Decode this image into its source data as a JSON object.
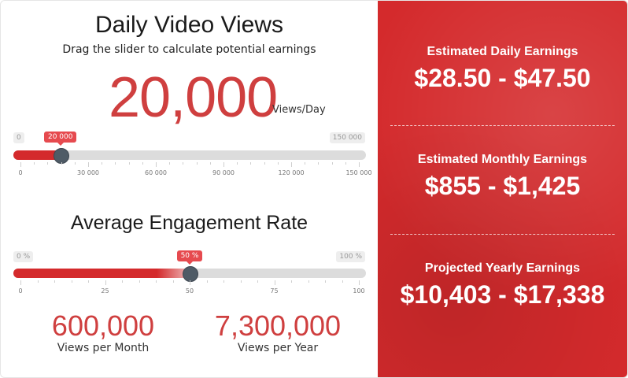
{
  "views": {
    "title": "Daily Video Views",
    "subtitle": "Drag the slider to calculate potential earnings",
    "value": "20,000",
    "unit": "Views/Day",
    "slider": {
      "min_label": "0",
      "max_label": "150 000",
      "current_label": "20 000",
      "min": 0,
      "max": 150000,
      "value": 20000,
      "ticks": [
        "0",
        "30 000",
        "60 000",
        "90 000",
        "120 000",
        "150 000"
      ]
    }
  },
  "engagement": {
    "title": "Average Engagement Rate",
    "slider": {
      "min_label": "0 %",
      "max_label": "100 %",
      "current_label": "50 %",
      "min": 0,
      "max": 100,
      "value": 50,
      "ticks": [
        "0",
        "25",
        "50",
        "75",
        "100"
      ]
    }
  },
  "stats": {
    "monthly_views": "600,000",
    "monthly_label": "Views per Month",
    "yearly_views": "7,300,000",
    "yearly_label": "Views per Year"
  },
  "earnings": {
    "daily_label": "Estimated Daily Earnings",
    "daily_value": "$28.50 - $47.50",
    "monthly_label": "Estimated Monthly Earnings",
    "monthly_value": "$855 - $1,425",
    "yearly_label": "Projected Yearly Earnings",
    "yearly_value": "$10,403 - $17,338"
  },
  "colors": {
    "accent": "#cf3f3f",
    "panel": "#d42a2c",
    "bubble": "#e64a4f",
    "handle": "#4f5b66"
  }
}
